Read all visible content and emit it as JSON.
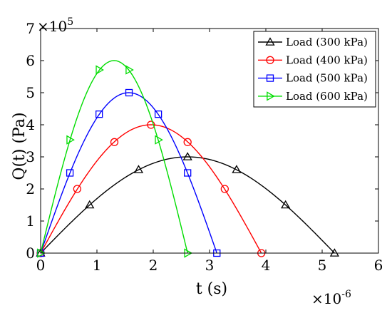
{
  "chart_data": {
    "type": "line",
    "xlabel": "t (s)",
    "ylabel": "Q(t) (Pa)",
    "x_multiplier": "×10",
    "x_exponent": "-6",
    "y_multiplier": "×10",
    "y_exponent": "5",
    "xlim": [
      0,
      6
    ],
    "ylim": [
      0,
      7
    ],
    "x_ticks": [
      "0",
      "1",
      "2",
      "3",
      "4",
      "5",
      "6"
    ],
    "y_ticks": [
      "0",
      "1",
      "2",
      "3",
      "4",
      "5",
      "6",
      "7"
    ],
    "grid": false,
    "legend_position": "top-right",
    "series": [
      {
        "name": "Load (300 kPa)",
        "color": "#000000",
        "marker": "triangle-up",
        "amplitude": 3,
        "duration": 5.22,
        "marker_x": [
          0,
          0.87,
          1.74,
          2.61,
          3.48,
          4.35,
          5.22
        ],
        "marker_y": [
          0,
          1.5,
          2.6,
          3.0,
          2.6,
          1.5,
          0
        ]
      },
      {
        "name": "Load (400 kPa)",
        "color": "#ff0000",
        "marker": "circle",
        "amplitude": 4,
        "duration": 3.92,
        "marker_x": [
          0,
          0.65,
          1.31,
          1.96,
          2.61,
          3.27,
          3.92
        ],
        "marker_y": [
          0,
          2.0,
          3.46,
          4.0,
          3.46,
          2.0,
          0
        ]
      },
      {
        "name": "Load (500 kPa)",
        "color": "#0000ff",
        "marker": "square",
        "amplitude": 5,
        "duration": 3.13,
        "marker_x": [
          0,
          0.52,
          1.04,
          1.57,
          2.09,
          2.61,
          3.13
        ],
        "marker_y": [
          0,
          2.5,
          4.33,
          5.0,
          4.33,
          2.5,
          0
        ]
      },
      {
        "name": "Load (600 kPa)",
        "color": "#00dd00",
        "marker": "triangle-right",
        "amplitude": 6,
        "duration": 2.61,
        "marker_x": [
          0,
          0.52,
          1.04,
          1.57,
          2.09,
          2.61
        ],
        "marker_y": [
          0,
          3.53,
          5.71,
          5.71,
          3.53,
          0
        ]
      }
    ]
  }
}
